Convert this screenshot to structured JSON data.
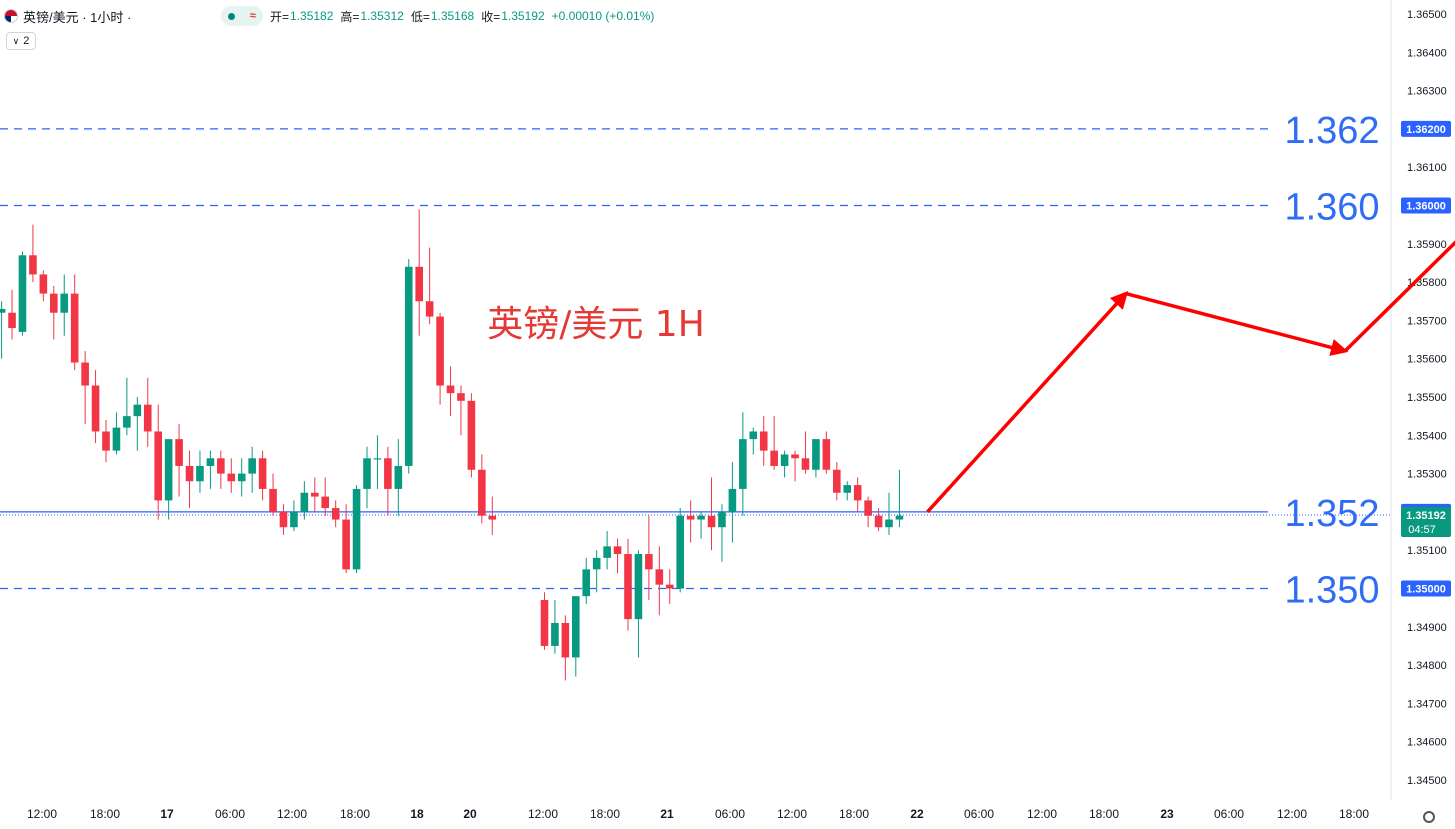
{
  "header": {
    "symbol_title": "英镑/美元 · 1小时 ·",
    "indicator_count": "2",
    "ohlc": [
      {
        "label": "开=",
        "value": "1.35182"
      },
      {
        "label": "高=",
        "value": "1.35312"
      },
      {
        "label": "低=",
        "value": "1.35168"
      },
      {
        "label": "收=",
        "value": "1.35192"
      },
      {
        "label": "",
        "value": "+0.00010 (+0.01%)"
      }
    ]
  },
  "icons": {
    "flag": "gb-flag-icon",
    "status": "market-status-dot-icon",
    "wave": "wave-icon",
    "indicator": "chevron-down-icon",
    "settings": "gear-icon"
  },
  "chart_data": {
    "type": "candlestick",
    "annotation": "英镑/美元 1H",
    "y_ticks": [
      "1.36500",
      "1.36400",
      "1.36300",
      "1.36100",
      "1.35900",
      "1.35800",
      "1.35700",
      "1.35600",
      "1.35500",
      "1.35400",
      "1.35300",
      "1.35100",
      "1.34900",
      "1.34800",
      "1.34700",
      "1.34600",
      "1.34500"
    ],
    "ylim": [
      1.3445,
      1.3655
    ],
    "x_ticks": [
      "12:00",
      "18:00",
      "17",
      "06:00",
      "12:00",
      "18:00",
      "18",
      "20",
      "12:00",
      "18:00",
      "21",
      "06:00",
      "12:00",
      "18:00",
      "22",
      "06:00",
      "12:00",
      "18:00",
      "23",
      "06:00",
      "12:00",
      "18:00"
    ],
    "current_price": {
      "value": 1.35192,
      "label": "1.35192",
      "countdown": "04:57"
    },
    "levels": [
      {
        "value": 1.362,
        "label": "1.362",
        "axis_label": "1.36200",
        "style": "dashed"
      },
      {
        "value": 1.36,
        "label": "1.360",
        "axis_label": "1.36000",
        "style": "dashed"
      },
      {
        "value": 1.352,
        "label": "1.352",
        "axis_label": "1.35200",
        "style": "solid"
      },
      {
        "value": 1.35,
        "label": "1.350",
        "axis_label": "1.35000",
        "style": "dashed"
      }
    ],
    "projection": [
      [
        0,
        1.352
      ],
      [
        19,
        1.3577
      ],
      [
        40,
        1.3562
      ],
      [
        59,
        1.3613
      ]
    ],
    "candles": [
      [
        1.3572,
        1.3575,
        1.356,
        1.3573
      ],
      [
        1.3572,
        1.3578,
        1.3565,
        1.3568
      ],
      [
        1.3567,
        1.3588,
        1.3566,
        1.3587
      ],
      [
        1.3587,
        1.3595,
        1.358,
        1.3582
      ],
      [
        1.3582,
        1.3583,
        1.3575,
        1.3577
      ],
      [
        1.3577,
        1.3579,
        1.3565,
        1.3572
      ],
      [
        1.3572,
        1.3582,
        1.3566,
        1.3577
      ],
      [
        1.3577,
        1.3582,
        1.3557,
        1.3559
      ],
      [
        1.3559,
        1.3562,
        1.3543,
        1.3553
      ],
      [
        1.3553,
        1.3557,
        1.3538,
        1.3541
      ],
      [
        1.3541,
        1.3544,
        1.3533,
        1.3536
      ],
      [
        1.3536,
        1.3546,
        1.3535,
        1.3542
      ],
      [
        1.3542,
        1.3555,
        1.354,
        1.3545
      ],
      [
        1.3545,
        1.355,
        1.3536,
        1.3548
      ],
      [
        1.3548,
        1.3555,
        1.3537,
        1.3541
      ],
      [
        1.3541,
        1.3548,
        1.3518,
        1.3523
      ],
      [
        1.3523,
        1.3538,
        1.3518,
        1.3539
      ],
      [
        1.3539,
        1.3543,
        1.3524,
        1.3532
      ],
      [
        1.3532,
        1.3536,
        1.3521,
        1.3528
      ],
      [
        1.3528,
        1.3536,
        1.3525,
        1.3532
      ],
      [
        1.3532,
        1.3536,
        1.3526,
        1.3534
      ],
      [
        1.3534,
        1.3536,
        1.3526,
        1.353
      ],
      [
        1.353,
        1.3534,
        1.3525,
        1.3528
      ],
      [
        1.3528,
        1.3534,
        1.3524,
        1.353
      ],
      [
        1.353,
        1.3537,
        1.3525,
        1.3534
      ],
      [
        1.3534,
        1.3536,
        1.3523,
        1.3526
      ],
      [
        1.3526,
        1.353,
        1.3519,
        1.352
      ],
      [
        1.352,
        1.3522,
        1.3514,
        1.3516
      ],
      [
        1.3516,
        1.3523,
        1.3515,
        1.352
      ],
      [
        1.352,
        1.3528,
        1.3518,
        1.3525
      ],
      [
        1.3525,
        1.3529,
        1.352,
        1.3524
      ],
      [
        1.3524,
        1.3529,
        1.3519,
        1.3521
      ],
      [
        1.3521,
        1.3523,
        1.3516,
        1.3518
      ],
      [
        1.3518,
        1.3522,
        1.3504,
        1.3505
      ],
      [
        1.3505,
        1.3527,
        1.3504,
        1.3526
      ],
      [
        1.3526,
        1.3537,
        1.3521,
        1.3534
      ],
      [
        1.3534,
        1.354,
        1.3526,
        1.3534
      ],
      [
        1.3534,
        1.3537,
        1.3519,
        1.3526
      ],
      [
        1.3526,
        1.3539,
        1.3519,
        1.3532
      ],
      [
        1.3532,
        1.3586,
        1.353,
        1.3584
      ],
      [
        1.3584,
        1.3599,
        1.3566,
        1.3575
      ],
      [
        1.3575,
        1.3589,
        1.3569,
        1.3571
      ],
      [
        1.3571,
        1.3572,
        1.3548,
        1.3553
      ],
      [
        1.3553,
        1.3558,
        1.3545,
        1.3551
      ],
      [
        1.3551,
        1.3553,
        1.354,
        1.3549
      ],
      [
        1.3549,
        1.3551,
        1.3529,
        1.3531
      ],
      [
        1.3531,
        1.3535,
        1.3517,
        1.3519
      ],
      [
        1.3519,
        1.3524,
        1.3514,
        1.3518
      ],
      [
        1.3497,
        1.3499,
        1.3484,
        1.3485
      ],
      [
        1.3485,
        1.3497,
        1.3483,
        1.3491
      ],
      [
        1.3491,
        1.3493,
        1.3476,
        1.3482
      ],
      [
        1.3482,
        1.3497,
        1.3477,
        1.3498
      ],
      [
        1.3498,
        1.3508,
        1.3496,
        1.3505
      ],
      [
        1.3505,
        1.351,
        1.3499,
        1.3508
      ],
      [
        1.3508,
        1.3515,
        1.3505,
        1.3511
      ],
      [
        1.3511,
        1.3513,
        1.3504,
        1.3509
      ],
      [
        1.3509,
        1.3513,
        1.3489,
        1.3492
      ],
      [
        1.3492,
        1.351,
        1.3482,
        1.3509
      ],
      [
        1.3509,
        1.3519,
        1.3497,
        1.3505
      ],
      [
        1.3505,
        1.3511,
        1.3493,
        1.3501
      ],
      [
        1.3501,
        1.3505,
        1.3496,
        1.35
      ],
      [
        1.35,
        1.3521,
        1.3499,
        1.3519
      ],
      [
        1.3519,
        1.3523,
        1.3512,
        1.3518
      ],
      [
        1.3518,
        1.352,
        1.3513,
        1.3519
      ],
      [
        1.3519,
        1.3529,
        1.351,
        1.3516
      ],
      [
        1.3516,
        1.3522,
        1.3507,
        1.352
      ],
      [
        1.352,
        1.3533,
        1.3512,
        1.3526
      ],
      [
        1.3526,
        1.3546,
        1.3519,
        1.3539
      ],
      [
        1.3539,
        1.3542,
        1.3535,
        1.3541
      ],
      [
        1.3541,
        1.3545,
        1.3532,
        1.3536
      ],
      [
        1.3536,
        1.3545,
        1.3531,
        1.3532
      ],
      [
        1.3532,
        1.3536,
        1.3529,
        1.3535
      ],
      [
        1.3535,
        1.3536,
        1.3528,
        1.3534
      ],
      [
        1.3534,
        1.3541,
        1.353,
        1.3531
      ],
      [
        1.3531,
        1.3539,
        1.3529,
        1.3539
      ],
      [
        1.3539,
        1.3541,
        1.353,
        1.3531
      ],
      [
        1.3531,
        1.3533,
        1.3523,
        1.3525
      ],
      [
        1.3525,
        1.3528,
        1.3523,
        1.3527
      ],
      [
        1.3527,
        1.3529,
        1.352,
        1.3523
      ],
      [
        1.3523,
        1.3524,
        1.3516,
        1.3519
      ],
      [
        1.3519,
        1.3521,
        1.3515,
        1.3516
      ],
      [
        1.3516,
        1.3525,
        1.3514,
        1.3518
      ],
      [
        1.3518,
        1.3531,
        1.3516,
        1.3519
      ]
    ]
  },
  "colors": {
    "up": "#089981",
    "down": "#f23645",
    "level_line": "#2962ff",
    "level_text": "#2f6df6",
    "arrow": "#ff0000",
    "annotation": "#e53935"
  }
}
